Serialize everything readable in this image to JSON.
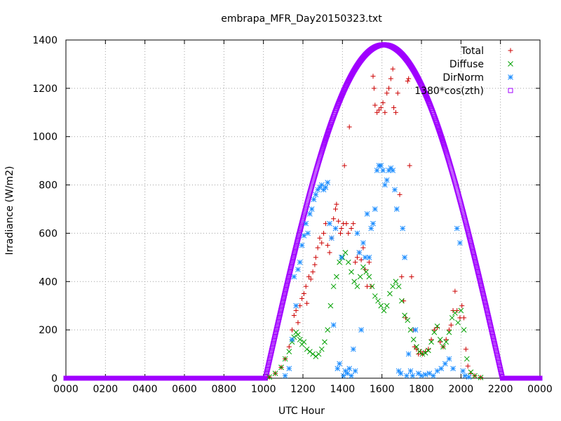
{
  "chart_data": {
    "type": "scatter",
    "title": "embrapa_MFR_Day20150323.txt",
    "xlabel": "UTC Hour",
    "ylabel": "Irradiance (W/m2)",
    "xlim": [
      0,
      24
    ],
    "ylim": [
      0,
      1400
    ],
    "grid": true,
    "legend_position": "top-right",
    "xticks": [
      0,
      2,
      4,
      6,
      8,
      10,
      12,
      14,
      16,
      18,
      20,
      22,
      24
    ],
    "xtick_labels": [
      "0000",
      "0200",
      "0400",
      "0600",
      "0800",
      "1000",
      "1200",
      "1400",
      "1600",
      "1800",
      "2000",
      "2200",
      "0000"
    ],
    "yticks": [
      0,
      200,
      400,
      600,
      800,
      1000,
      1200,
      1400
    ],
    "ytick_labels": [
      "0",
      "200",
      "400",
      "600",
      "800",
      "1000",
      "1200",
      "1400"
    ],
    "series": [
      {
        "name": "Total",
        "marker": "plus",
        "color": "#cc0000",
        "points": [
          [
            10.3,
            5
          ],
          [
            10.6,
            20
          ],
          [
            10.9,
            45
          ],
          [
            11.1,
            80
          ],
          [
            11.3,
            130
          ],
          [
            11.45,
            200
          ],
          [
            11.55,
            260
          ],
          [
            11.65,
            280
          ],
          [
            11.75,
            230
          ],
          [
            11.85,
            300
          ],
          [
            11.95,
            330
          ],
          [
            12.05,
            350
          ],
          [
            12.15,
            380
          ],
          [
            12.2,
            310
          ],
          [
            12.3,
            420
          ],
          [
            12.4,
            410
          ],
          [
            12.5,
            440
          ],
          [
            12.6,
            470
          ],
          [
            12.65,
            500
          ],
          [
            12.75,
            540
          ],
          [
            12.85,
            580
          ],
          [
            12.95,
            560
          ],
          [
            13.05,
            600
          ],
          [
            13.15,
            640
          ],
          [
            13.25,
            550
          ],
          [
            13.35,
            520
          ],
          [
            13.45,
            580
          ],
          [
            13.55,
            660
          ],
          [
            13.65,
            700
          ],
          [
            13.7,
            720
          ],
          [
            13.8,
            650
          ],
          [
            13.9,
            600
          ],
          [
            13.95,
            620
          ],
          [
            14.05,
            640
          ],
          [
            14.1,
            880
          ],
          [
            14.2,
            640
          ],
          [
            14.3,
            600
          ],
          [
            14.35,
            1040
          ],
          [
            14.45,
            620
          ],
          [
            14.55,
            640
          ],
          [
            14.65,
            480
          ],
          [
            14.75,
            500
          ],
          [
            14.85,
            520
          ],
          [
            14.95,
            490
          ],
          [
            15.05,
            540
          ],
          [
            15.15,
            450
          ],
          [
            15.25,
            380
          ],
          [
            15.35,
            480
          ],
          [
            15.45,
            380
          ],
          [
            15.55,
            1250
          ],
          [
            15.6,
            1200
          ],
          [
            15.65,
            1130
          ],
          [
            15.75,
            1100
          ],
          [
            15.85,
            1110
          ],
          [
            15.95,
            1120
          ],
          [
            16.05,
            1140
          ],
          [
            16.15,
            1100
          ],
          [
            16.25,
            1180
          ],
          [
            16.35,
            1200
          ],
          [
            16.45,
            1240
          ],
          [
            16.55,
            1280
          ],
          [
            16.6,
            1120
          ],
          [
            16.7,
            1100
          ],
          [
            16.8,
            1180
          ],
          [
            16.9,
            760
          ],
          [
            17.0,
            420
          ],
          [
            17.1,
            320
          ],
          [
            17.2,
            250
          ],
          [
            17.3,
            1230
          ],
          [
            17.35,
            1240
          ],
          [
            17.4,
            880
          ],
          [
            17.5,
            420
          ],
          [
            17.6,
            200
          ],
          [
            17.65,
            130
          ],
          [
            17.75,
            120
          ],
          [
            17.85,
            100
          ],
          [
            17.95,
            110
          ],
          [
            18.05,
            100
          ],
          [
            18.2,
            110
          ],
          [
            18.35,
            120
          ],
          [
            18.5,
            160
          ],
          [
            18.65,
            200
          ],
          [
            18.8,
            210
          ],
          [
            18.95,
            150
          ],
          [
            19.1,
            130
          ],
          [
            19.25,
            160
          ],
          [
            19.4,
            200
          ],
          [
            19.5,
            220
          ],
          [
            19.6,
            280
          ],
          [
            19.7,
            360
          ],
          [
            19.8,
            280
          ],
          [
            19.95,
            250
          ],
          [
            20.05,
            300
          ],
          [
            20.15,
            250
          ],
          [
            20.25,
            120
          ],
          [
            20.35,
            50
          ],
          [
            20.5,
            20
          ],
          [
            20.7,
            10
          ],
          [
            21.0,
            3
          ]
        ]
      },
      {
        "name": "Diffuse",
        "marker": "cross",
        "color": "#00a000",
        "points": [
          [
            10.3,
            5
          ],
          [
            10.6,
            20
          ],
          [
            10.9,
            45
          ],
          [
            11.1,
            80
          ],
          [
            11.3,
            110
          ],
          [
            11.45,
            150
          ],
          [
            11.55,
            170
          ],
          [
            11.65,
            190
          ],
          [
            11.75,
            180
          ],
          [
            11.85,
            160
          ],
          [
            11.95,
            140
          ],
          [
            12.05,
            150
          ],
          [
            12.2,
            120
          ],
          [
            12.35,
            110
          ],
          [
            12.5,
            100
          ],
          [
            12.65,
            90
          ],
          [
            12.8,
            100
          ],
          [
            12.95,
            120
          ],
          [
            13.1,
            150
          ],
          [
            13.25,
            200
          ],
          [
            13.4,
            300
          ],
          [
            13.55,
            380
          ],
          [
            13.7,
            420
          ],
          [
            13.85,
            480
          ],
          [
            14.0,
            500
          ],
          [
            14.15,
            520
          ],
          [
            14.3,
            480
          ],
          [
            14.45,
            440
          ],
          [
            14.6,
            400
          ],
          [
            14.75,
            380
          ],
          [
            14.9,
            420
          ],
          [
            15.05,
            460
          ],
          [
            15.2,
            440
          ],
          [
            15.35,
            420
          ],
          [
            15.5,
            380
          ],
          [
            15.65,
            340
          ],
          [
            15.8,
            320
          ],
          [
            15.95,
            300
          ],
          [
            16.1,
            280
          ],
          [
            16.25,
            300
          ],
          [
            16.4,
            350
          ],
          [
            16.55,
            380
          ],
          [
            16.7,
            400
          ],
          [
            16.85,
            380
          ],
          [
            17.0,
            320
          ],
          [
            17.15,
            260
          ],
          [
            17.3,
            240
          ],
          [
            17.45,
            200
          ],
          [
            17.6,
            160
          ],
          [
            17.75,
            130
          ],
          [
            17.9,
            110
          ],
          [
            18.05,
            100
          ],
          [
            18.2,
            105
          ],
          [
            18.35,
            115
          ],
          [
            18.5,
            150
          ],
          [
            18.65,
            190
          ],
          [
            18.8,
            215
          ],
          [
            18.95,
            160
          ],
          [
            19.1,
            130
          ],
          [
            19.25,
            150
          ],
          [
            19.4,
            190
          ],
          [
            19.55,
            250
          ],
          [
            19.7,
            270
          ],
          [
            19.85,
            230
          ],
          [
            20.0,
            280
          ],
          [
            20.15,
            200
          ],
          [
            20.3,
            80
          ],
          [
            20.5,
            25
          ],
          [
            20.7,
            10
          ],
          [
            21.0,
            3
          ]
        ]
      },
      {
        "name": "DirNorm",
        "marker": "star",
        "color": "#1a8cff",
        "points": [
          [
            11.1,
            10
          ],
          [
            11.3,
            40
          ],
          [
            11.45,
            160
          ],
          [
            11.55,
            420
          ],
          [
            11.65,
            300
          ],
          [
            11.75,
            450
          ],
          [
            11.85,
            480
          ],
          [
            11.95,
            550
          ],
          [
            12.05,
            590
          ],
          [
            12.15,
            640
          ],
          [
            12.25,
            600
          ],
          [
            12.35,
            680
          ],
          [
            12.45,
            700
          ],
          [
            12.55,
            740
          ],
          [
            12.65,
            760
          ],
          [
            12.75,
            780
          ],
          [
            12.85,
            790
          ],
          [
            12.95,
            800
          ],
          [
            13.05,
            780
          ],
          [
            13.15,
            790
          ],
          [
            13.25,
            810
          ],
          [
            13.35,
            640
          ],
          [
            13.45,
            580
          ],
          [
            13.55,
            220
          ],
          [
            13.65,
            620
          ],
          [
            13.75,
            40
          ],
          [
            13.85,
            60
          ],
          [
            13.95,
            500
          ],
          [
            14.05,
            10
          ],
          [
            14.15,
            30
          ],
          [
            14.25,
            20
          ],
          [
            14.35,
            40
          ],
          [
            14.45,
            10
          ],
          [
            14.55,
            120
          ],
          [
            14.65,
            30
          ],
          [
            14.75,
            600
          ],
          [
            14.85,
            520
          ],
          [
            14.95,
            200
          ],
          [
            15.05,
            560
          ],
          [
            15.15,
            500
          ],
          [
            15.25,
            680
          ],
          [
            15.35,
            500
          ],
          [
            15.45,
            620
          ],
          [
            15.55,
            640
          ],
          [
            15.65,
            700
          ],
          [
            15.75,
            860
          ],
          [
            15.85,
            880
          ],
          [
            15.95,
            880
          ],
          [
            16.05,
            860
          ],
          [
            16.15,
            800
          ],
          [
            16.25,
            820
          ],
          [
            16.35,
            860
          ],
          [
            16.45,
            870
          ],
          [
            16.55,
            860
          ],
          [
            16.65,
            780
          ],
          [
            16.75,
            700
          ],
          [
            16.85,
            30
          ],
          [
            16.95,
            20
          ],
          [
            17.05,
            620
          ],
          [
            17.15,
            500
          ],
          [
            17.25,
            10
          ],
          [
            17.35,
            100
          ],
          [
            17.45,
            30
          ],
          [
            17.55,
            10
          ],
          [
            17.7,
            200
          ],
          [
            17.85,
            20
          ],
          [
            18.0,
            10
          ],
          [
            18.2,
            15
          ],
          [
            18.4,
            20
          ],
          [
            18.6,
            10
          ],
          [
            18.8,
            30
          ],
          [
            19.0,
            40
          ],
          [
            19.2,
            60
          ],
          [
            19.4,
            80
          ],
          [
            19.6,
            40
          ],
          [
            19.8,
            620
          ],
          [
            19.95,
            560
          ],
          [
            20.1,
            30
          ],
          [
            20.2,
            10
          ],
          [
            20.4,
            5
          ]
        ]
      },
      {
        "name": "1380*cos(zth)",
        "marker": "square",
        "color": "#a000ff",
        "line": true,
        "formula": {
          "amplitude": 1380,
          "start": 10.1,
          "end": 22.1
        },
        "points": [
          [
            0,
            0
          ],
          [
            10.1,
            0
          ],
          [
            10.5,
            200
          ],
          [
            11.0,
            430
          ],
          [
            11.5,
            640
          ],
          [
            12.0,
            830
          ],
          [
            12.5,
            1000
          ],
          [
            13.0,
            1140
          ],
          [
            13.5,
            1250
          ],
          [
            14.0,
            1320
          ],
          [
            14.5,
            1360
          ],
          [
            15.0,
            1378
          ],
          [
            15.5,
            1378
          ],
          [
            16.0,
            1370
          ],
          [
            16.5,
            1340
          ],
          [
            17.0,
            1290
          ],
          [
            17.5,
            1210
          ],
          [
            18.0,
            1100
          ],
          [
            18.5,
            960
          ],
          [
            19.0,
            800
          ],
          [
            19.5,
            620
          ],
          [
            20.0,
            420
          ],
          [
            20.5,
            250
          ],
          [
            21.0,
            110
          ],
          [
            21.5,
            20
          ],
          [
            22.1,
            0
          ],
          [
            24,
            0
          ]
        ]
      }
    ]
  }
}
